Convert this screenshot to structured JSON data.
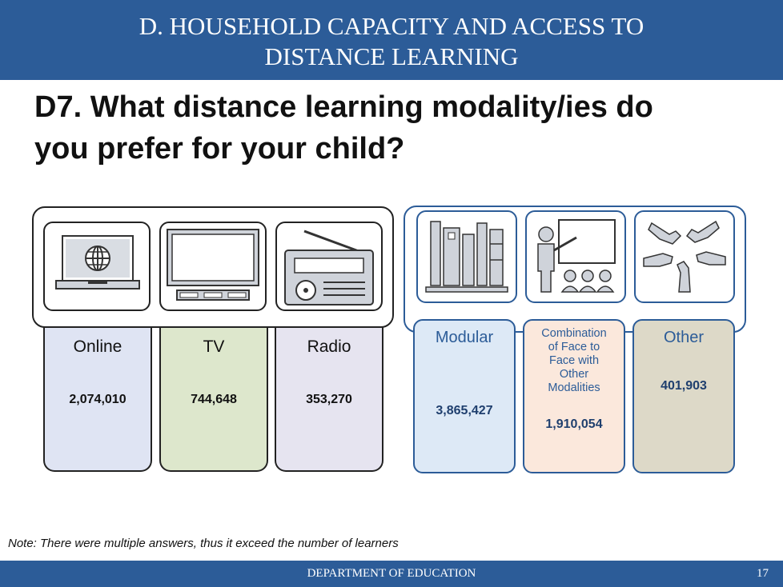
{
  "header": {
    "line1": "D. HOUSEHOLD CAPACITY AND ACCESS TO",
    "line2": "DISTANCE LEARNING"
  },
  "question": {
    "line1": "D7. What distance learning modality/ies do",
    "line2": "you prefer for your child?"
  },
  "modalities": [
    {
      "label": "Online",
      "value": "2,074,010",
      "icon": "laptop-globe-icon",
      "color": "#dfe4f3"
    },
    {
      "label": "TV",
      "value": "744,648",
      "icon": "tv-icon",
      "color": "#dde7cc"
    },
    {
      "label": "Radio",
      "value": "353,270",
      "icon": "radio-icon",
      "color": "#e6e4f0"
    },
    {
      "label": "Modular",
      "value": "3,865,427",
      "icon": "books-icon",
      "color": "#dde9f6"
    },
    {
      "label_lines": [
        "Combination",
        "of Face to",
        "Face with",
        "Other",
        "Modalities"
      ],
      "value": "1,910,054",
      "icon": "teacher-icon",
      "color": "#fbe8dc"
    },
    {
      "label": "Other",
      "value": "401,903",
      "icon": "hands-icon",
      "color": "#ddd9c8"
    }
  ],
  "note": "Note: There were multiple answers, thus it exceed the number of learners",
  "footer": {
    "department": "DEPARTMENT OF EDUCATION",
    "page": "17"
  }
}
